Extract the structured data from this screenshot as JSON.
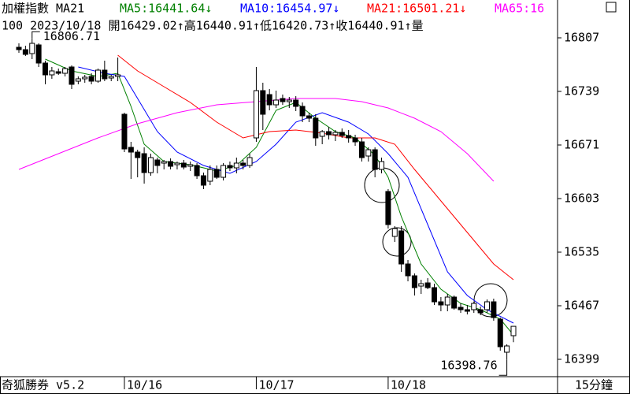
{
  "chart_data": {
    "type": "candlestick",
    "title": "加權指數 MA21",
    "info": "100 2023/10/18 開16429.02↑高16440.91↑低16420.73↑收16440.91↑量",
    "footer": "奇狐勝券 v5.2",
    "period": "15分鐘",
    "annotations": [
      {
        "text": "16806.71",
        "index": 2,
        "value": 16806.71
      },
      {
        "text": "16398.76",
        "index": 74,
        "value": 16398.76
      }
    ],
    "categories": [
      null,
      null,
      null,
      null,
      null,
      null,
      null,
      null,
      null,
      null,
      null,
      null,
      null,
      null,
      null,
      null,
      "10/16",
      null,
      null,
      null,
      null,
      null,
      null,
      null,
      null,
      null,
      null,
      null,
      null,
      null,
      null,
      null,
      null,
      null,
      null,
      null,
      "10/17",
      null,
      null,
      null,
      null,
      null,
      null,
      null,
      null,
      null,
      null,
      null,
      null,
      null,
      null,
      null,
      null,
      null,
      null,
      null,
      "10/18",
      null,
      null,
      null,
      null,
      null,
      null,
      null,
      null,
      null,
      null,
      null,
      null,
      null,
      null,
      null,
      null,
      null,
      null,
      null
    ],
    "open": [
      16795,
      16792,
      16787,
      16798,
      16775,
      16760,
      16764,
      16762,
      16770,
      16752,
      16755,
      16758,
      16752,
      16766,
      16756,
      16758,
      16710,
      16668,
      16662,
      16660,
      16636,
      16652,
      16648,
      16650,
      16646,
      16648,
      16644,
      16645,
      16632,
      16625,
      16640,
      16630,
      16645,
      16642,
      16648,
      16645,
      16680,
      16740,
      16735,
      16722,
      16730,
      16726,
      16728,
      16720,
      16708,
      16705,
      16682,
      16688,
      16684,
      16687,
      16683,
      16680,
      16675,
      16657,
      16665,
      16640,
      16612,
      16555,
      16562,
      16520,
      16505,
      16492,
      16496,
      16490,
      16472,
      16468,
      16478,
      16465,
      16462,
      16462,
      16462,
      16462,
      16472,
      16450,
      16408,
      16429.02
    ],
    "high": [
      16800,
      16797,
      16806.71,
      16800,
      16778,
      16770,
      16768,
      16770,
      16772,
      16758,
      16760,
      16762,
      16768,
      16778,
      16760,
      16782,
      16712,
      16675,
      16665,
      16668,
      16660,
      16655,
      16652,
      16654,
      16650,
      16652,
      16650,
      16648,
      16636,
      16645,
      16645,
      16648,
      16650,
      16655,
      16652,
      16660,
      16770,
      16750,
      16742,
      16740,
      16735,
      16732,
      16733,
      16725,
      16712,
      16710,
      16690,
      16694,
      16690,
      16692,
      16690,
      16684,
      16680,
      16668,
      16668,
      16655,
      16615,
      16568,
      16568,
      16525,
      16508,
      16500,
      16502,
      16495,
      16478,
      16482,
      16480,
      16470,
      16468,
      16472,
      16466,
      16475,
      16476,
      16452,
      16418,
      16440.91
    ],
    "low": [
      16788,
      16784,
      16780,
      16770,
      16748,
      16755,
      16760,
      16758,
      16742,
      16748,
      16750,
      16748,
      16750,
      16752,
      16752,
      16752,
      16662,
      16628,
      16630,
      16622,
      16632,
      16635,
      16640,
      16640,
      16640,
      16640,
      16638,
      16628,
      16615,
      16620,
      16628,
      16626,
      16638,
      16635,
      16640,
      16642,
      16675,
      16690,
      16715,
      16718,
      16722,
      16718,
      16714,
      16700,
      16700,
      16670,
      16672,
      16678,
      16676,
      16680,
      16674,
      16670,
      16650,
      16650,
      16630,
      16635,
      16565,
      16548,
      16510,
      16498,
      16480,
      16482,
      16488,
      16468,
      16460,
      16460,
      16462,
      16458,
      16456,
      16458,
      16455,
      16458,
      16448,
      16410,
      16398.76,
      16420.73
    ],
    "close": [
      16792,
      16786,
      16800,
      16775,
      16760,
      16765,
      16762,
      16768,
      16748,
      16755,
      16757,
      16752,
      16766,
      16755,
      16758,
      16760,
      16666,
      16662,
      16655,
      16636,
      16655,
      16645,
      16650,
      16644,
      16648,
      16643,
      16646,
      16632,
      16620,
      16640,
      16630,
      16645,
      16642,
      16648,
      16645,
      16655,
      16740,
      16710,
      16722,
      16728,
      16726,
      16728,
      16720,
      16708,
      16705,
      16680,
      16688,
      16684,
      16687,
      16683,
      16680,
      16675,
      16655,
      16665,
      16640,
      16650,
      16570,
      16565,
      16520,
      16505,
      16490,
      16495,
      16490,
      16472,
      16468,
      16478,
      16464,
      16462,
      16460,
      16470,
      16458,
      16472,
      16452,
      16415,
      16416,
      16440.91
    ],
    "up_color": "#ffffff",
    "down_color": "#000000",
    "series": [
      {
        "name": "MA5:16441.64↓",
        "color": "#008000",
        "x": [
          4,
          8,
          12,
          15,
          17,
          19,
          22,
          26,
          30,
          33,
          36,
          39,
          42,
          45,
          48,
          51,
          54,
          56,
          58,
          61,
          64,
          67,
          70,
          73,
          75
        ],
        "values": [
          16780,
          16765,
          16758,
          16762,
          16720,
          16672,
          16650,
          16646,
          16638,
          16645,
          16668,
          16715,
          16725,
          16705,
          16688,
          16680,
          16658,
          16630,
          16580,
          16520,
          16488,
          16470,
          16462,
          16450,
          16430
        ]
      },
      {
        "name": "MA10:16454.97↓",
        "color": "#0000ff",
        "x": [
          9,
          13,
          16,
          18,
          21,
          24,
          28,
          32,
          36,
          39,
          42,
          46,
          50,
          53,
          56,
          59,
          62,
          65,
          68,
          71,
          75
        ],
        "values": [
          16770,
          16762,
          16758,
          16730,
          16688,
          16662,
          16645,
          16635,
          16650,
          16672,
          16700,
          16712,
          16700,
          16685,
          16660,
          16630,
          16570,
          16510,
          16480,
          16462,
          16445
        ]
      },
      {
        "name": "MA21:16501.21↓",
        "color": "#ff0000",
        "x": [
          15,
          18,
          22,
          26,
          30,
          34,
          38,
          42,
          46,
          50,
          54,
          57,
          60,
          64,
          68,
          72,
          75
        ],
        "values": [
          16785,
          16765,
          16745,
          16725,
          16700,
          16680,
          16688,
          16690,
          16686,
          16680,
          16680,
          16672,
          16640,
          16600,
          16560,
          16520,
          16500
        ]
      },
      {
        "name": "MA65:16",
        "color": "#ff00ff",
        "x": [
          0,
          6,
          12,
          18,
          24,
          30,
          33,
          36,
          42,
          48,
          52,
          56,
          60,
          64,
          68,
          72
        ],
        "values": [
          16640,
          16660,
          16680,
          16698,
          16712,
          16722,
          16724,
          16726,
          16730,
          16730,
          16726,
          16718,
          16705,
          16688,
          16660,
          16625
        ]
      }
    ],
    "ylim": [
      16831,
      16375
    ],
    "yticks": [
      16807,
      16739,
      16671,
      16603,
      16535,
      16467,
      16399
    ]
  }
}
